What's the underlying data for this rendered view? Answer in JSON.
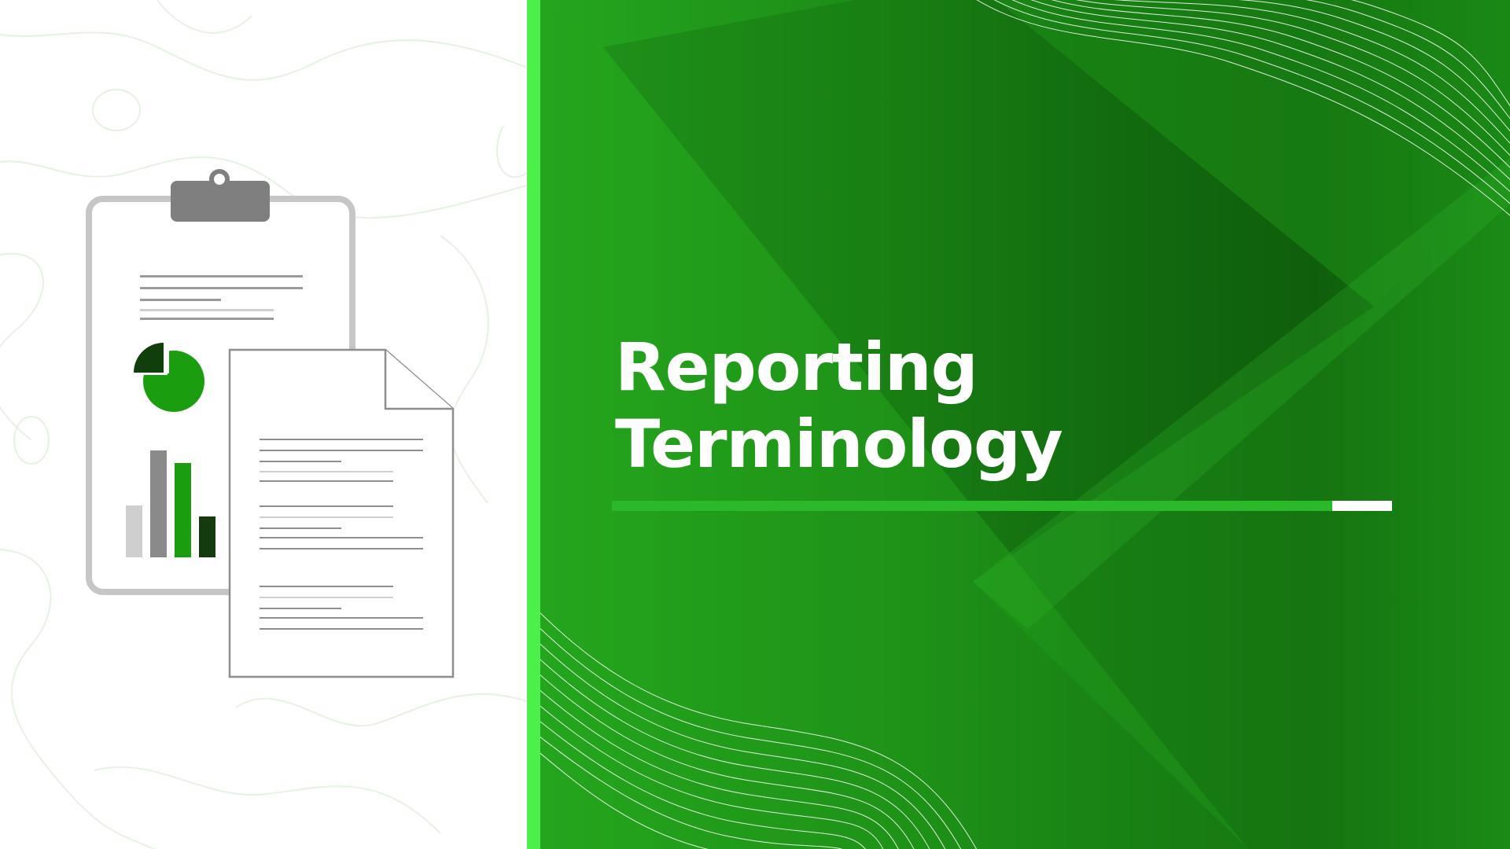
{
  "slide": {
    "title_line1": "Reporting",
    "title_line2": "Terminology"
  },
  "colors": {
    "accent_stripe": "#4cf04a",
    "background_green": "#1c8c16",
    "underline_green": "#2bb82a",
    "pie_dark": "#113f0b",
    "pie_green": "#1a9e10",
    "bar_light_gray": "#cfcfcf",
    "bar_gray": "#8a8a8a",
    "bar_green": "#1a9e10",
    "bar_dark": "#143a10"
  },
  "illustration": {
    "icons": [
      "clipboard-icon",
      "document-icon",
      "pie-chart-icon",
      "bar-chart-icon"
    ]
  }
}
